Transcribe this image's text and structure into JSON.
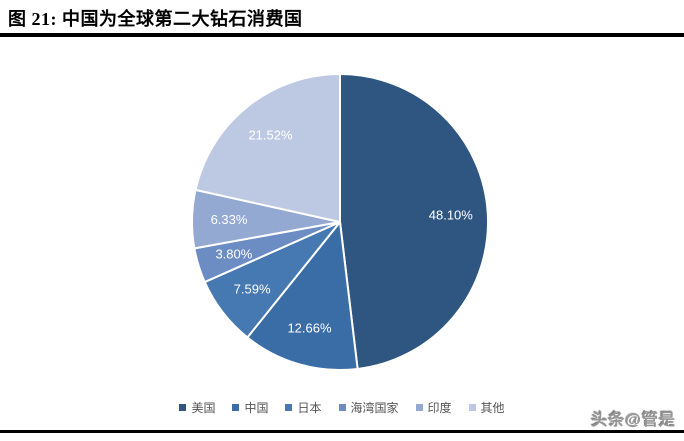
{
  "header": {
    "title": "图 21:  中国为全球第二大钻石消费国"
  },
  "chart_data": {
    "type": "pie",
    "title": "图 21: 中国为全球第二大钻石消费国",
    "start_angle_deg": 0,
    "direction": "clockwise",
    "categories": [
      "美国",
      "中国",
      "日本",
      "海湾国家",
      "印度",
      "其他"
    ],
    "slugs": [
      "usa",
      "china",
      "japan",
      "gulf-states",
      "india",
      "other"
    ],
    "values": [
      48.1,
      12.66,
      7.59,
      3.8,
      6.33,
      21.52
    ],
    "labels": [
      "48.10%",
      "12.66%",
      "7.59%",
      "3.80%",
      "6.33%",
      "21.52%"
    ],
    "colors": [
      "#2F5581",
      "#3A6CA6",
      "#4678B2",
      "#6B8DC4",
      "#93A9D2",
      "#BDC9E2"
    ],
    "label_color": "#FFFFFF",
    "slice_stroke_color": "#FFFFFF",
    "legend_position": "bottom",
    "legend_text_color": "#555555"
  },
  "watermark": {
    "text": "头条@管是"
  },
  "divider_color": "#000000"
}
